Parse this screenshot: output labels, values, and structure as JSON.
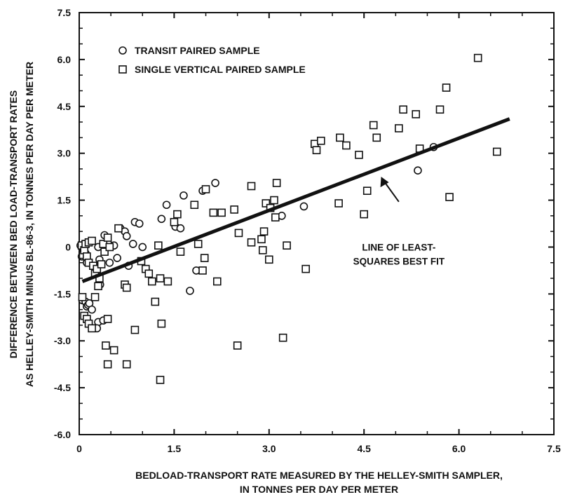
{
  "chart_data": {
    "type": "scatter",
    "title": "",
    "xlabel": [
      "BEDLOAD-TRANSPORT RATE MEASURED BY THE HELLEY-SMITH SAMPLER,",
      "IN TONNES PER DAY PER METER"
    ],
    "ylabel": [
      "DIFFERENCE BETWEEN BED LOAD-TRANSPORT RATES",
      "AS HELLEY-SMITH MINUS BL-86-3, IN TONNES PER DAY PER METER"
    ],
    "xlim": [
      0,
      7.5
    ],
    "ylim": [
      -6.0,
      7.5
    ],
    "xticks": [
      "0",
      "1.5",
      "3.0",
      "4.5",
      "6.0",
      "7.5"
    ],
    "yticks": [
      "7.5",
      "6.0",
      "4.5",
      "3.0",
      "1.5",
      "0",
      "-1.5",
      "-3.0",
      "-4.5",
      "-6.0"
    ],
    "grid": false,
    "legend_position": "top-left",
    "series": [
      {
        "name": "TRANSIT PAIRED SAMPLE",
        "marker": "circle",
        "points": [
          [
            0.02,
            0.05
          ],
          [
            0.04,
            -0.3
          ],
          [
            0.06,
            -0.15
          ],
          [
            0.08,
            0.1
          ],
          [
            0.1,
            -0.2
          ],
          [
            0.12,
            -0.5
          ],
          [
            0.05,
            -1.7
          ],
          [
            0.1,
            -1.75
          ],
          [
            0.12,
            -1.9
          ],
          [
            0.14,
            -1.85
          ],
          [
            0.16,
            -1.8
          ],
          [
            0.2,
            -2.0
          ],
          [
            0.3,
            -2.4
          ],
          [
            0.28,
            -2.6
          ],
          [
            0.38,
            -2.35
          ],
          [
            0.28,
            -0.65
          ],
          [
            0.32,
            -0.4
          ],
          [
            0.33,
            -1.2
          ],
          [
            0.3,
            0.0
          ],
          [
            0.4,
            0.38
          ],
          [
            0.45,
            0.15
          ],
          [
            0.48,
            -0.5
          ],
          [
            0.55,
            0.05
          ],
          [
            0.6,
            -0.35
          ],
          [
            0.65,
            0.6
          ],
          [
            0.72,
            0.5
          ],
          [
            0.75,
            0.35
          ],
          [
            0.78,
            -0.6
          ],
          [
            0.85,
            0.1
          ],
          [
            0.88,
            0.8
          ],
          [
            0.95,
            0.75
          ],
          [
            1.0,
            0.0
          ],
          [
            1.05,
            -0.7
          ],
          [
            1.3,
            0.9
          ],
          [
            1.38,
            1.35
          ],
          [
            1.52,
            0.65
          ],
          [
            1.6,
            0.6
          ],
          [
            1.65,
            1.65
          ],
          [
            1.75,
            -1.4
          ],
          [
            1.85,
            -0.75
          ],
          [
            1.95,
            1.8
          ],
          [
            2.15,
            2.05
          ],
          [
            3.2,
            1.0
          ],
          [
            3.55,
            1.3
          ],
          [
            5.35,
            2.45
          ],
          [
            5.6,
            3.2
          ]
        ]
      },
      {
        "name": "SINGLE VERTICAL PAIRED SAMPLE",
        "marker": "square",
        "points": [
          [
            0.04,
            0.05
          ],
          [
            0.06,
            -0.25
          ],
          [
            0.08,
            -0.1
          ],
          [
            0.1,
            0.1
          ],
          [
            0.12,
            -0.3
          ],
          [
            0.15,
            -0.5
          ],
          [
            0.15,
            0.15
          ],
          [
            0.2,
            0.2
          ],
          [
            0.22,
            -0.6
          ],
          [
            0.25,
            -0.85
          ],
          [
            0.28,
            -0.7
          ],
          [
            0.3,
            -1.25
          ],
          [
            0.32,
            -1.0
          ],
          [
            0.35,
            -0.55
          ],
          [
            0.38,
            0.1
          ],
          [
            0.4,
            -0.15
          ],
          [
            0.45,
            0.3
          ],
          [
            0.48,
            0.0
          ],
          [
            0.05,
            -1.6
          ],
          [
            0.08,
            -2.2
          ],
          [
            0.12,
            -2.3
          ],
          [
            0.15,
            -2.45
          ],
          [
            0.2,
            -2.6
          ],
          [
            0.25,
            -1.6
          ],
          [
            0.42,
            -3.15
          ],
          [
            0.45,
            -2.3
          ],
          [
            0.45,
            -3.75
          ],
          [
            0.55,
            -3.3
          ],
          [
            0.62,
            0.6
          ],
          [
            0.72,
            -1.2
          ],
          [
            0.75,
            -1.3
          ],
          [
            0.75,
            -3.75
          ],
          [
            0.88,
            -2.65
          ],
          [
            0.98,
            -0.45
          ],
          [
            1.05,
            -0.7
          ],
          [
            1.1,
            -0.85
          ],
          [
            1.15,
            -1.1
          ],
          [
            1.2,
            -1.75
          ],
          [
            1.25,
            0.05
          ],
          [
            1.28,
            -1.0
          ],
          [
            1.3,
            -2.45
          ],
          [
            1.28,
            -4.25
          ],
          [
            1.4,
            -1.1
          ],
          [
            1.5,
            0.8
          ],
          [
            1.55,
            1.05
          ],
          [
            1.6,
            -0.15
          ],
          [
            1.82,
            1.35
          ],
          [
            1.88,
            0.1
          ],
          [
            1.95,
            -0.75
          ],
          [
            1.98,
            -0.35
          ],
          [
            2.0,
            1.85
          ],
          [
            2.12,
            1.1
          ],
          [
            2.18,
            -1.1
          ],
          [
            2.25,
            1.1
          ],
          [
            2.45,
            1.2
          ],
          [
            2.52,
            0.45
          ],
          [
            2.5,
            -3.15
          ],
          [
            2.72,
            0.15
          ],
          [
            2.72,
            1.95
          ],
          [
            2.88,
            0.25
          ],
          [
            2.92,
            0.5
          ],
          [
            2.9,
            -0.1
          ],
          [
            2.95,
            1.4
          ],
          [
            3.0,
            -0.4
          ],
          [
            3.02,
            1.25
          ],
          [
            3.08,
            1.5
          ],
          [
            3.12,
            2.05
          ],
          [
            3.1,
            0.95
          ],
          [
            3.22,
            -2.9
          ],
          [
            3.28,
            0.05
          ],
          [
            3.58,
            -0.7
          ],
          [
            3.72,
            3.3
          ],
          [
            3.75,
            3.1
          ],
          [
            3.82,
            3.4
          ],
          [
            4.12,
            3.5
          ],
          [
            4.22,
            3.25
          ],
          [
            4.1,
            1.4
          ],
          [
            4.42,
            2.95
          ],
          [
            4.5,
            1.05
          ],
          [
            4.55,
            1.8
          ],
          [
            4.65,
            3.9
          ],
          [
            4.7,
            3.5
          ],
          [
            5.05,
            3.8
          ],
          [
            5.12,
            4.4
          ],
          [
            5.32,
            4.25
          ],
          [
            5.38,
            3.15
          ],
          [
            5.7,
            4.4
          ],
          [
            5.8,
            5.1
          ],
          [
            5.85,
            1.6
          ],
          [
            6.3,
            6.05
          ],
          [
            6.6,
            3.05
          ]
        ]
      }
    ],
    "fit_line": {
      "label": "LINE OF LEAST-SQUARES BEST FIT",
      "label_lines": [
        "LINE OF LEAST-",
        "SQUARES BEST FIT"
      ],
      "x": [
        0.05,
        6.8
      ],
      "y": [
        -1.1,
        4.1
      ],
      "annotation_anchor": [
        5.05,
        1.45
      ],
      "annotation_arrow_tip": [
        4.77,
        2.25
      ]
    }
  }
}
